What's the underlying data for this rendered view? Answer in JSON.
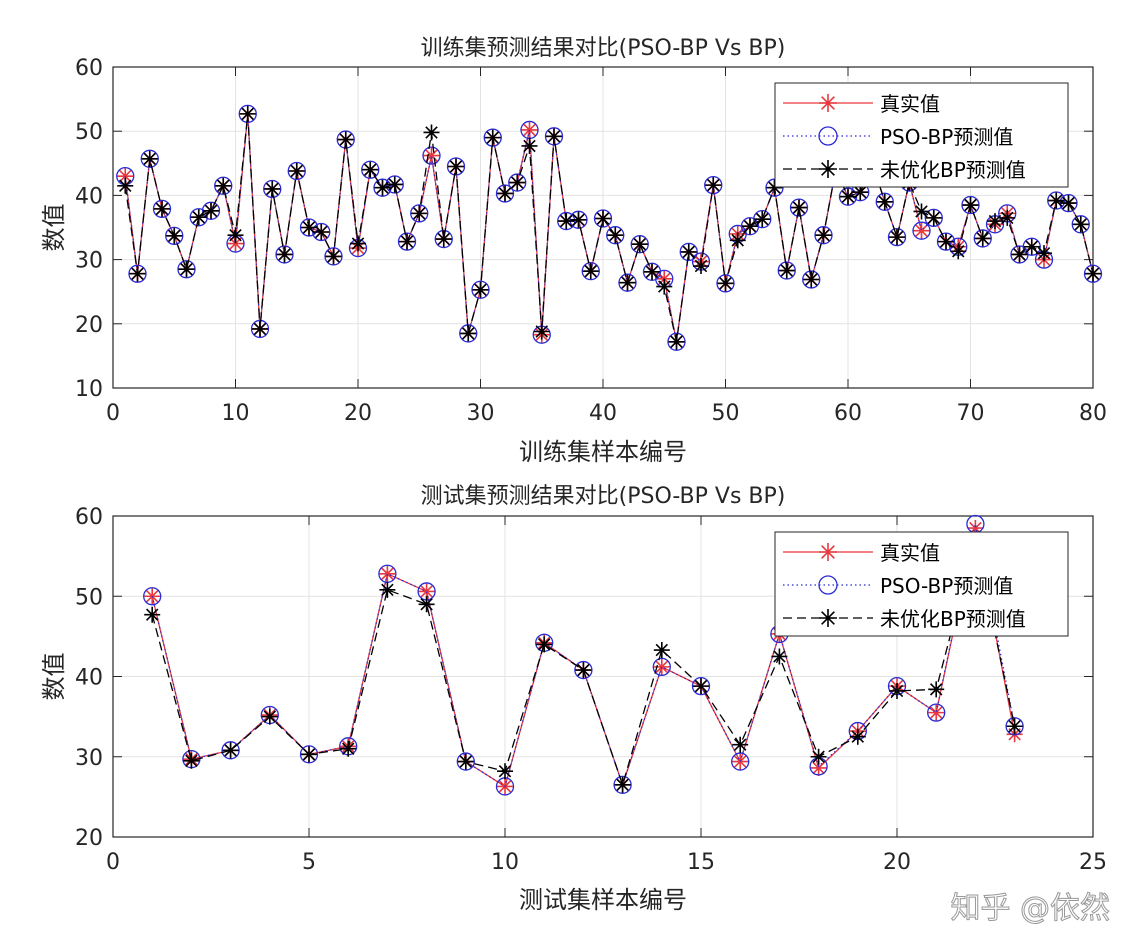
{
  "chart_data": [
    {
      "type": "line",
      "title": "训练集预测结果对比(PSO-BP Vs BP)",
      "xlabel": "训练集样本编号",
      "ylabel": "数值",
      "xlim": [
        0,
        80
      ],
      "ylim": [
        10,
        60
      ],
      "xticks": [
        0,
        10,
        20,
        30,
        40,
        50,
        60,
        70,
        80
      ],
      "yticks": [
        10,
        20,
        30,
        40,
        50,
        60
      ],
      "grid": true,
      "legend_position": "top-right",
      "x": [
        1,
        2,
        3,
        4,
        5,
        6,
        7,
        8,
        9,
        10,
        11,
        12,
        13,
        14,
        15,
        16,
        17,
        18,
        19,
        20,
        21,
        22,
        23,
        24,
        25,
        26,
        27,
        28,
        29,
        30,
        31,
        32,
        33,
        34,
        35,
        36,
        37,
        38,
        39,
        40,
        41,
        42,
        43,
        44,
        45,
        46,
        47,
        48,
        49,
        50,
        51,
        52,
        53,
        54,
        55,
        56,
        57,
        58,
        59,
        60,
        61,
        62,
        63,
        64,
        65,
        66,
        67,
        68,
        69,
        70,
        71,
        72,
        73,
        74,
        75,
        76,
        77,
        78,
        79,
        80
      ],
      "series": [
        {
          "name": "真实值",
          "color": "#e8383d",
          "marker": "asterisk",
          "line": "solid",
          "values": [
            43,
            27.8,
            45.7,
            37.9,
            33.7,
            28.5,
            36.6,
            37.6,
            41.5,
            32.5,
            52.7,
            19.2,
            41,
            30.8,
            43.8,
            35,
            34.3,
            30.5,
            48.7,
            31.8,
            44,
            41.2,
            41.7,
            32.8,
            37.2,
            46.2,
            33.2,
            44.5,
            18.5,
            25.3,
            49,
            40.3,
            42,
            50.2,
            18.3,
            49.2,
            36,
            36.2,
            28.2,
            36.4,
            33.8,
            26.4,
            32.4,
            28.1,
            27,
            17.2,
            31.2,
            29.7,
            41.6,
            26.3,
            34,
            35.2,
            36.3,
            41.2,
            28.3,
            38.1,
            26.9,
            33.8,
            44,
            39.8,
            40.5,
            45,
            39,
            33.5,
            42,
            34.5,
            36.5,
            32.8,
            32,
            38.5,
            33.3,
            35.5,
            37.2,
            30.8,
            32,
            30,
            39.2,
            38.8,
            35.5,
            27.8
          ]
        },
        {
          "name": "PSO-BP预测值",
          "color": "#2b2bd6",
          "marker": "circle",
          "line": "dotted",
          "values": [
            43,
            27.8,
            45.7,
            37.9,
            33.7,
            28.5,
            36.6,
            37.6,
            41.5,
            32.5,
            52.7,
            19.2,
            41,
            30.8,
            43.8,
            35,
            34.3,
            30.5,
            48.7,
            31.8,
            44,
            41.2,
            41.7,
            32.8,
            37.2,
            46.2,
            33.2,
            44.5,
            18.5,
            25.3,
            49,
            40.3,
            42,
            50.2,
            18.3,
            49.2,
            36,
            36.2,
            28.2,
            36.4,
            33.8,
            26.4,
            32.4,
            28.1,
            27,
            17.2,
            31.2,
            29.7,
            41.6,
            26.3,
            34,
            35.2,
            36.3,
            41.2,
            28.3,
            38.1,
            26.9,
            33.8,
            44,
            39.8,
            40.5,
            45,
            39,
            33.5,
            42,
            34.5,
            36.5,
            32.8,
            32,
            38.5,
            33.3,
            35.5,
            37.2,
            30.8,
            32,
            30,
            39.2,
            38.8,
            35.5,
            27.8
          ]
        },
        {
          "name": "未优化BP预测值",
          "color": "#000000",
          "marker": "asterisk",
          "line": "dashed",
          "values": [
            41.5,
            27.8,
            45.7,
            37.9,
            33.7,
            28.5,
            36.6,
            37.6,
            41.5,
            33.8,
            52.7,
            19.2,
            41,
            30.8,
            43.8,
            35,
            34.3,
            30.5,
            48.7,
            32.5,
            44,
            41.2,
            41.7,
            32.8,
            37.2,
            49.8,
            33.2,
            44.5,
            18.5,
            25.3,
            49,
            40.3,
            42,
            47.7,
            18.8,
            49.2,
            36,
            36.2,
            28.2,
            36.4,
            33.8,
            26.4,
            32.4,
            28.1,
            25.8,
            17.2,
            31.2,
            29,
            41.6,
            26.3,
            33,
            35.2,
            36.3,
            41.2,
            28.3,
            38.1,
            26.9,
            33.8,
            44,
            39.8,
            40.5,
            45,
            39,
            33.5,
            42,
            37.5,
            36.5,
            32.8,
            31.3,
            38.5,
            33.3,
            36,
            36.5,
            30.8,
            32,
            31,
            39.2,
            38.8,
            35.5,
            27.8
          ]
        }
      ]
    },
    {
      "type": "line",
      "title": "测试集预测结果对比(PSO-BP Vs BP)",
      "xlabel": "测试集样本编号",
      "ylabel": "数值",
      "xlim": [
        0,
        25
      ],
      "ylim": [
        20,
        60
      ],
      "xticks": [
        0,
        5,
        10,
        15,
        20,
        25
      ],
      "yticks": [
        20,
        30,
        40,
        50,
        60
      ],
      "grid": true,
      "legend_position": "top-right",
      "x": [
        1,
        2,
        3,
        4,
        5,
        6,
        7,
        8,
        9,
        10,
        11,
        12,
        13,
        14,
        15,
        16,
        17,
        18,
        19,
        20,
        21,
        22,
        23
      ],
      "series": [
        {
          "name": "真实值",
          "color": "#e8383d",
          "marker": "asterisk",
          "line": "solid",
          "values": [
            50,
            29.7,
            30.8,
            35.2,
            30.3,
            31.3,
            52.8,
            50.6,
            29.4,
            26.3,
            44.2,
            40.8,
            26.5,
            41.2,
            38.8,
            29.4,
            45.3,
            28.6,
            33.2,
            38.8,
            35.5,
            58.5,
            32.8
          ]
        },
        {
          "name": "PSO-BP预测值",
          "color": "#2b2bd6",
          "marker": "circle",
          "line": "dotted",
          "values": [
            50,
            29.7,
            30.8,
            35.2,
            30.3,
            31.3,
            52.8,
            50.6,
            29.4,
            26.3,
            44.2,
            40.8,
            26.5,
            41.2,
            38.8,
            29.4,
            45.3,
            28.8,
            33.2,
            38.8,
            35.5,
            59,
            33.8
          ]
        },
        {
          "name": "未优化BP预测值",
          "color": "#000000",
          "marker": "asterisk",
          "line": "dashed",
          "values": [
            47.7,
            29.5,
            30.8,
            35,
            30.3,
            31,
            50.8,
            49,
            29.4,
            28.2,
            44,
            40.8,
            26.5,
            43.3,
            38.8,
            31.5,
            42.5,
            30,
            32.5,
            38.2,
            38.4,
            57,
            33.8
          ]
        }
      ]
    }
  ],
  "watermark": "知乎 @依然"
}
